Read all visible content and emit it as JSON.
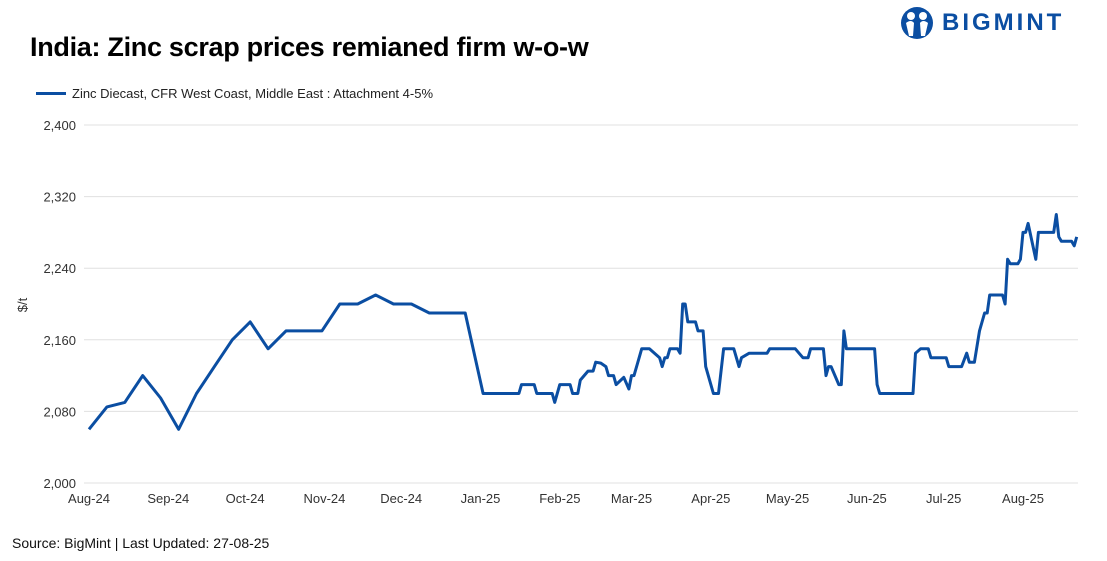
{
  "header": {
    "title": "India: Zinc scrap prices remianed firm w-o-w",
    "logo_text": "BIGMINT"
  },
  "footer": {
    "source": "Source: BigMint | Last Updated: 27-08-25"
  },
  "colors": {
    "line": "#0b4ea2",
    "grid": "#e0e0e0",
    "brand": "#0b4ea2"
  },
  "chart_data": {
    "type": "line",
    "title": "India: Zinc scrap prices remianed firm w-o-w",
    "xlabel": "",
    "ylabel": "$/t",
    "ylim": [
      2000,
      2400
    ],
    "yticks": [
      2000,
      2080,
      2160,
      2240,
      2320,
      2400
    ],
    "ytick_labels": [
      "2,000",
      "2,080",
      "2,160",
      "2,240",
      "2,320",
      "2,400"
    ],
    "x_unit": "days since 2024-08-01",
    "xlim": [
      0,
      388
    ],
    "xticks": [
      {
        "day": 0,
        "label": "Aug-24"
      },
      {
        "day": 31,
        "label": "Sep-24"
      },
      {
        "day": 61,
        "label": "Oct-24"
      },
      {
        "day": 92,
        "label": "Nov-24"
      },
      {
        "day": 122,
        "label": "Dec-24"
      },
      {
        "day": 153,
        "label": "Jan-25"
      },
      {
        "day": 184,
        "label": "Feb-25"
      },
      {
        "day": 212,
        "label": "Mar-25"
      },
      {
        "day": 243,
        "label": "Apr-25"
      },
      {
        "day": 273,
        "label": "May-25"
      },
      {
        "day": 304,
        "label": "Jun-25"
      },
      {
        "day": 334,
        "label": "Jul-25"
      },
      {
        "day": 365,
        "label": "Aug-25"
      }
    ],
    "grid": true,
    "legend_position": "top-left",
    "series": [
      {
        "name": "Zinc Diecast, CFR West Coast, Middle East : Attachment 4-5%",
        "x": [
          0,
          7,
          14,
          21,
          28,
          35,
          42,
          49,
          56,
          63,
          70,
          77,
          91,
          98,
          105,
          112,
          119,
          126,
          133,
          147,
          154,
          168,
          169,
          174,
          175,
          181,
          182,
          184,
          188,
          189,
          191,
          192,
          195,
          197,
          198,
          200,
          202,
          203,
          205,
          206,
          209,
          211,
          212,
          213,
          216,
          219,
          223,
          224,
          225,
          226,
          227,
          230,
          231,
          232,
          233,
          234,
          237,
          238,
          240,
          241,
          244,
          246,
          248,
          252,
          254,
          255,
          258,
          265,
          266,
          276,
          279,
          281,
          282,
          287,
          288,
          289,
          290,
          293,
          294,
          295,
          296,
          307,
          308,
          309,
          322,
          323,
          325,
          328,
          329,
          335,
          336,
          341,
          343,
          344,
          346,
          348,
          350,
          351,
          352,
          357,
          358,
          359,
          360,
          363,
          364,
          365,
          366,
          367,
          370,
          371,
          377,
          378,
          379,
          380,
          384,
          385,
          386
        ],
        "y": [
          2060,
          2085,
          2090,
          2120,
          2095,
          2060,
          2100,
          2130,
          2160,
          2180,
          2150,
          2170,
          2170,
          2200,
          2200,
          2210,
          2200,
          2200,
          2190,
          2190,
          2100,
          2100,
          2110,
          2110,
          2100,
          2100,
          2090,
          2110,
          2110,
          2100,
          2100,
          2115,
          2125,
          2125,
          2135,
          2134,
          2130,
          2120,
          2120,
          2110,
          2118,
          2105,
          2120,
          2120,
          2150,
          2150,
          2140,
          2130,
          2140,
          2140,
          2150,
          2150,
          2145,
          2200,
          2200,
          2180,
          2180,
          2170,
          2170,
          2130,
          2100,
          2100,
          2150,
          2150,
          2130,
          2140,
          2145,
          2145,
          2150,
          2150,
          2140,
          2140,
          2150,
          2150,
          2120,
          2130,
          2130,
          2110,
          2110,
          2170,
          2150,
          2150,
          2110,
          2100,
          2100,
          2145,
          2150,
          2150,
          2140,
          2140,
          2130,
          2130,
          2145,
          2135,
          2135,
          2170,
          2190,
          2190,
          2210,
          2210,
          2200,
          2250,
          2245,
          2245,
          2250,
          2280,
          2280,
          2290,
          2250,
          2280,
          2280,
          2300,
          2275,
          2270,
          2270,
          2265,
          2275
        ]
      }
    ]
  }
}
